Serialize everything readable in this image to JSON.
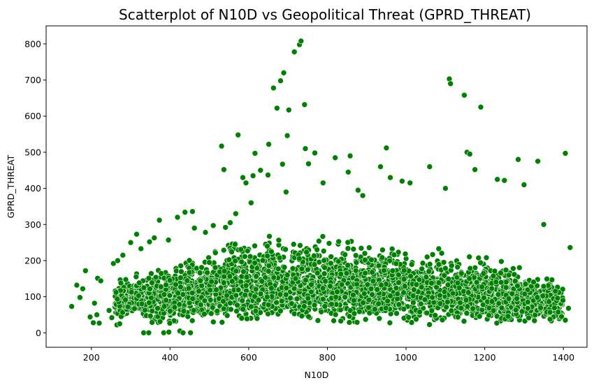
{
  "chart_data": {
    "type": "scatter",
    "title": "Scatterplot of N10D vs Geopolitical Threat (GPRD_THREAT)",
    "xlabel": "N10D",
    "ylabel": "GPRD_THREAT",
    "xlim": [
      85,
      1460
    ],
    "ylim": [
      -40,
      850
    ],
    "xticks": [
      200,
      400,
      600,
      800,
      1000,
      1200,
      1400
    ],
    "yticks": [
      0,
      100,
      200,
      300,
      400,
      500,
      600,
      700,
      800
    ],
    "marker_color": "#008000",
    "marker_edge": "#ffffff",
    "grid": false,
    "series": [
      {
        "name": "GPRD_THREAT",
        "points": [
          [
            150,
            73
          ],
          [
            163,
            132
          ],
          [
            171,
            98
          ],
          [
            178,
            122
          ],
          [
            185,
            172
          ],
          [
            197,
            44
          ],
          [
            205,
            28
          ],
          [
            208,
            82
          ],
          [
            214,
            50
          ],
          [
            216,
            151
          ],
          [
            220,
            27
          ],
          [
            224,
            144
          ],
          [
            245,
            62
          ],
          [
            252,
            42
          ],
          [
            256,
            192
          ],
          [
            265,
            22
          ],
          [
            267,
            200
          ],
          [
            272,
            25
          ],
          [
            275,
            138
          ],
          [
            280,
            215
          ],
          [
            293,
            72
          ],
          [
            300,
            250
          ],
          [
            315,
            273
          ],
          [
            326,
            233
          ],
          [
            333,
            0
          ],
          [
            346,
            0
          ],
          [
            348,
            252
          ],
          [
            360,
            263
          ],
          [
            373,
            312
          ],
          [
            384,
            0
          ],
          [
            396,
            257
          ],
          [
            397,
            2
          ],
          [
            400,
            60
          ],
          [
            419,
            320
          ],
          [
            425,
            5
          ],
          [
            433,
            0
          ],
          [
            438,
            334
          ],
          [
            452,
            0
          ],
          [
            457,
            336
          ],
          [
            462,
            290
          ],
          [
            490,
            278
          ],
          [
            510,
            297
          ],
          [
            531,
            517
          ],
          [
            537,
            452
          ],
          [
            541,
            292
          ],
          [
            553,
            305
          ],
          [
            567,
            330
          ],
          [
            573,
            548
          ],
          [
            585,
            430
          ],
          [
            593,
            415
          ],
          [
            606,
            360
          ],
          [
            611,
            435
          ],
          [
            616,
            497
          ],
          [
            630,
            450
          ],
          [
            649,
            437
          ],
          [
            651,
            522
          ],
          [
            663,
            678
          ],
          [
            672,
            622
          ],
          [
            681,
            698
          ],
          [
            686,
            467
          ],
          [
            689,
            720
          ],
          [
            695,
            390
          ],
          [
            698,
            546
          ],
          [
            702,
            617
          ],
          [
            716,
            778
          ],
          [
            729,
            798
          ],
          [
            733,
            808
          ],
          [
            742,
            632
          ],
          [
            744,
            510
          ],
          [
            752,
            468
          ],
          [
            768,
            498
          ],
          [
            789,
            415
          ],
          [
            820,
            485
          ],
          [
            853,
            445
          ],
          [
            858,
            490
          ],
          [
            878,
            395
          ],
          [
            890,
            380
          ],
          [
            935,
            460
          ],
          [
            950,
            512
          ],
          [
            960,
            430
          ],
          [
            990,
            420
          ],
          [
            1010,
            415
          ],
          [
            1060,
            460
          ],
          [
            1100,
            400
          ],
          [
            1110,
            703
          ],
          [
            1113,
            690
          ],
          [
            1148,
            658
          ],
          [
            1155,
            500
          ],
          [
            1162,
            495
          ],
          [
            1175,
            452
          ],
          [
            1190,
            625
          ],
          [
            1232,
            425
          ],
          [
            1250,
            422
          ],
          [
            1285,
            480
          ],
          [
            1300,
            410
          ],
          [
            1335,
            475
          ],
          [
            1350,
            300
          ],
          [
            1405,
            497
          ],
          [
            1413,
            68
          ],
          [
            1417,
            236
          ],
          [
            1405,
            35
          ]
        ],
        "cloud": {
          "x_range": [
            260,
            1400
          ],
          "y_range": [
            0,
            300
          ],
          "density_note": "dense band of several thousand observations, median around 100"
        }
      }
    ]
  }
}
